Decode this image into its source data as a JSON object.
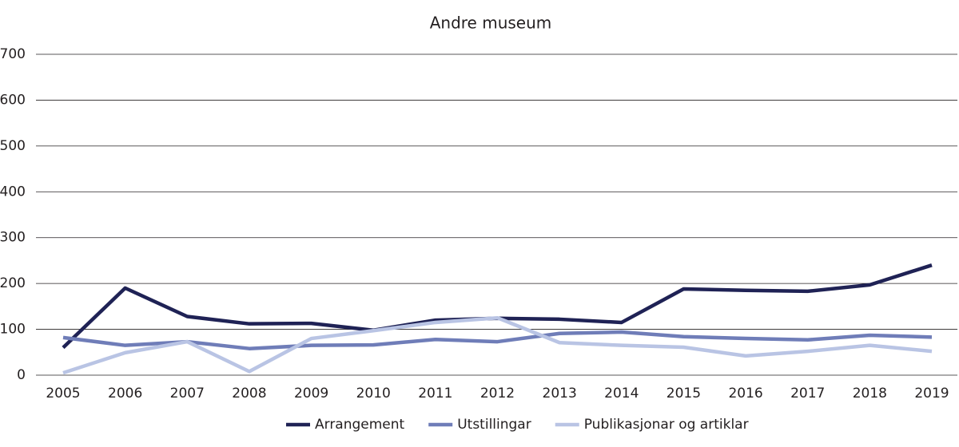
{
  "chart_data": {
    "type": "line",
    "title": "Andre museum",
    "categories": [
      "2005",
      "2006",
      "2007",
      "2008",
      "2009",
      "2010",
      "2011",
      "2012",
      "2013",
      "2014",
      "2015",
      "2016",
      "2017",
      "2018",
      "2019"
    ],
    "series": [
      {
        "name": "Arrangement",
        "color": "#1f2255",
        "values": [
          60,
          190,
          128,
          112,
          113,
          98,
          120,
          124,
          122,
          115,
          188,
          185,
          183,
          197,
          240
        ]
      },
      {
        "name": "Utstillingar",
        "color": "#6f7db8",
        "values": [
          82,
          65,
          73,
          58,
          65,
          66,
          78,
          73,
          91,
          94,
          84,
          80,
          77,
          87,
          83
        ]
      },
      {
        "name": "Publikasjonar og artiklar",
        "color": "#b9c4e4",
        "values": [
          5,
          49,
          73,
          8,
          80,
          97,
          115,
          125,
          71,
          65,
          61,
          42,
          52,
          65,
          52
        ]
      }
    ],
    "ylim": [
      0,
      700
    ],
    "yticks": [
      0,
      100,
      200,
      300,
      400,
      500,
      600,
      700
    ],
    "grid": true,
    "legend": "bottom"
  }
}
